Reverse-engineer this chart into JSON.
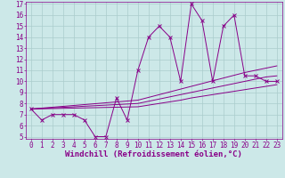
{
  "xlabel": "Windchill (Refroidissement éolien,°C)",
  "x_data": [
    0,
    1,
    2,
    3,
    4,
    5,
    6,
    7,
    8,
    9,
    10,
    11,
    12,
    13,
    14,
    15,
    16,
    17,
    18,
    19,
    20,
    21,
    22,
    23
  ],
  "y_main": [
    7.5,
    6.5,
    7.0,
    7.0,
    7.0,
    6.5,
    5.0,
    5.0,
    8.5,
    6.5,
    11.0,
    14.0,
    15.0,
    14.0,
    10.0,
    17.0,
    15.5,
    10.0,
    15.0,
    16.0,
    10.5,
    10.5,
    10.0,
    10.0
  ],
  "y_reg1": [
    7.5,
    7.55,
    7.6,
    7.65,
    7.7,
    7.75,
    7.8,
    7.85,
    7.9,
    7.95,
    8.0,
    8.2,
    8.4,
    8.6,
    8.8,
    9.0,
    9.2,
    9.4,
    9.6,
    9.8,
    10.0,
    10.2,
    10.4,
    10.5
  ],
  "y_reg2": [
    7.5,
    7.58,
    7.66,
    7.74,
    7.82,
    7.9,
    7.98,
    8.06,
    8.14,
    8.22,
    8.3,
    8.55,
    8.8,
    9.05,
    9.3,
    9.55,
    9.8,
    10.05,
    10.3,
    10.55,
    10.8,
    11.0,
    11.2,
    11.4
  ],
  "y_reg3": [
    7.5,
    7.52,
    7.54,
    7.56,
    7.58,
    7.6,
    7.62,
    7.64,
    7.66,
    7.68,
    7.7,
    7.85,
    8.0,
    8.15,
    8.3,
    8.5,
    8.65,
    8.8,
    8.95,
    9.1,
    9.25,
    9.4,
    9.55,
    9.7
  ],
  "line_color": "#880088",
  "bg_color": "#cce8e8",
  "grid_color": "#aacccc",
  "ylim": [
    5,
    17
  ],
  "xlim": [
    -0.5,
    23.5
  ],
  "yticks": [
    5,
    6,
    7,
    8,
    9,
    10,
    11,
    12,
    13,
    14,
    15,
    16,
    17
  ],
  "xticks": [
    0,
    1,
    2,
    3,
    4,
    5,
    6,
    7,
    8,
    9,
    10,
    11,
    12,
    13,
    14,
    15,
    16,
    17,
    18,
    19,
    20,
    21,
    22,
    23
  ],
  "tick_fontsize": 5.5,
  "label_fontsize": 6.5
}
